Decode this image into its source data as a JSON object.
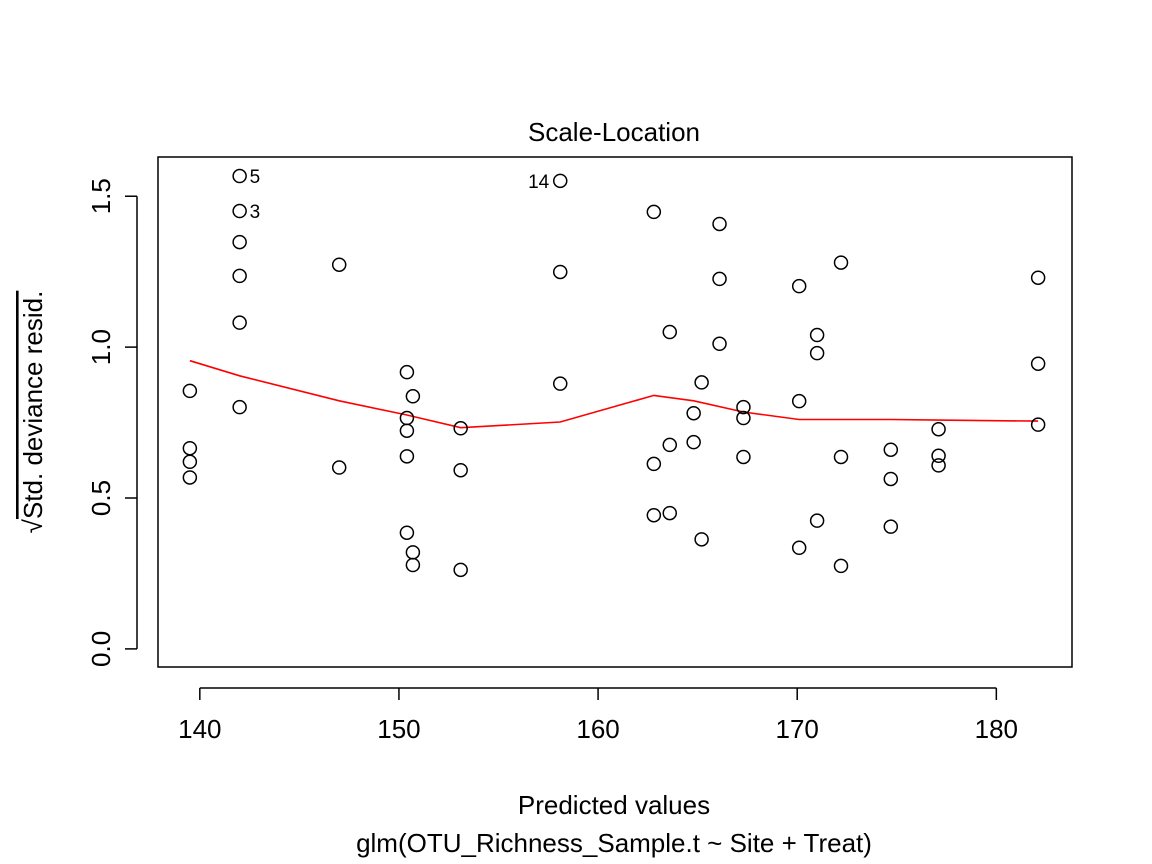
{
  "chart_data": {
    "type": "scatter",
    "title": "Scale-Location",
    "xlabel": "Predicted values",
    "subtitle": "glm(OTU_Richness_Sample.t ~ Site + Treat)",
    "ylabel": "Std. deviance resid.",
    "ylabel_prefix": "√",
    "xlim": [
      137.9,
      183.8
    ],
    "ylim": [
      -0.06,
      1.63
    ],
    "xticks": [
      140,
      150,
      160,
      170,
      180
    ],
    "yticks": [
      0.0,
      0.5,
      1.0,
      1.5
    ],
    "xtick_labels": [
      "140",
      "150",
      "160",
      "170",
      "180"
    ],
    "ytick_labels": [
      "0.0",
      "0.5",
      "1.0",
      "1.5"
    ],
    "grid": false,
    "legend": "none",
    "colors": {
      "points": "#000000",
      "smooth": "#ff0000",
      "frame": "#000000"
    },
    "points": [
      {
        "x": 139.5,
        "y": 0.855
      },
      {
        "x": 139.5,
        "y": 0.665
      },
      {
        "x": 139.5,
        "y": 0.62
      },
      {
        "x": 139.5,
        "y": 0.568
      },
      {
        "x": 142.0,
        "y": 1.567,
        "label": "5"
      },
      {
        "x": 142.0,
        "y": 1.451,
        "label": "3"
      },
      {
        "x": 142.0,
        "y": 1.348
      },
      {
        "x": 142.0,
        "y": 1.236
      },
      {
        "x": 142.0,
        "y": 1.081
      },
      {
        "x": 142.0,
        "y": 0.801
      },
      {
        "x": 147.0,
        "y": 1.273
      },
      {
        "x": 147.0,
        "y": 0.601
      },
      {
        "x": 150.4,
        "y": 0.917
      },
      {
        "x": 150.4,
        "y": 0.765
      },
      {
        "x": 150.4,
        "y": 0.723
      },
      {
        "x": 150.4,
        "y": 0.638
      },
      {
        "x": 150.4,
        "y": 0.385
      },
      {
        "x": 150.7,
        "y": 0.837
      },
      {
        "x": 150.7,
        "y": 0.32
      },
      {
        "x": 150.7,
        "y": 0.278
      },
      {
        "x": 153.1,
        "y": 0.731
      },
      {
        "x": 153.1,
        "y": 0.592
      },
      {
        "x": 153.1,
        "y": 0.262
      },
      {
        "x": 158.1,
        "y": 1.551,
        "label": "14",
        "label_side": "left"
      },
      {
        "x": 158.1,
        "y": 1.249
      },
      {
        "x": 158.1,
        "y": 0.879
      },
      {
        "x": 162.8,
        "y": 1.448
      },
      {
        "x": 162.8,
        "y": 0.613
      },
      {
        "x": 162.8,
        "y": 0.443
      },
      {
        "x": 163.6,
        "y": 1.05
      },
      {
        "x": 163.6,
        "y": 0.676
      },
      {
        "x": 163.6,
        "y": 0.45
      },
      {
        "x": 164.8,
        "y": 0.781
      },
      {
        "x": 164.8,
        "y": 0.685
      },
      {
        "x": 165.2,
        "y": 0.883
      },
      {
        "x": 165.2,
        "y": 0.363
      },
      {
        "x": 166.1,
        "y": 1.408
      },
      {
        "x": 166.1,
        "y": 1.226
      },
      {
        "x": 166.1,
        "y": 1.011
      },
      {
        "x": 167.3,
        "y": 0.801
      },
      {
        "x": 167.3,
        "y": 0.765
      },
      {
        "x": 167.3,
        "y": 0.636
      },
      {
        "x": 170.1,
        "y": 1.202
      },
      {
        "x": 170.1,
        "y": 0.821
      },
      {
        "x": 170.1,
        "y": 0.335
      },
      {
        "x": 171.0,
        "y": 1.04
      },
      {
        "x": 171.0,
        "y": 0.98
      },
      {
        "x": 171.0,
        "y": 0.425
      },
      {
        "x": 172.2,
        "y": 1.28
      },
      {
        "x": 172.2,
        "y": 0.636
      },
      {
        "x": 172.2,
        "y": 0.275
      },
      {
        "x": 174.7,
        "y": 0.66
      },
      {
        "x": 174.7,
        "y": 0.563
      },
      {
        "x": 174.7,
        "y": 0.405
      },
      {
        "x": 177.1,
        "y": 0.728
      },
      {
        "x": 177.1,
        "y": 0.64
      },
      {
        "x": 177.1,
        "y": 0.608
      },
      {
        "x": 182.1,
        "y": 1.23
      },
      {
        "x": 182.1,
        "y": 0.945
      },
      {
        "x": 182.1,
        "y": 0.743
      }
    ],
    "smooth_line": [
      {
        "x": 139.5,
        "y": 0.955
      },
      {
        "x": 142.0,
        "y": 0.905
      },
      {
        "x": 147.0,
        "y": 0.822
      },
      {
        "x": 150.4,
        "y": 0.775
      },
      {
        "x": 153.1,
        "y": 0.733
      },
      {
        "x": 158.1,
        "y": 0.752
      },
      {
        "x": 162.8,
        "y": 0.84
      },
      {
        "x": 164.8,
        "y": 0.822
      },
      {
        "x": 167.3,
        "y": 0.785
      },
      {
        "x": 170.1,
        "y": 0.76
      },
      {
        "x": 174.7,
        "y": 0.76
      },
      {
        "x": 177.1,
        "y": 0.758
      },
      {
        "x": 182.1,
        "y": 0.755
      }
    ]
  }
}
